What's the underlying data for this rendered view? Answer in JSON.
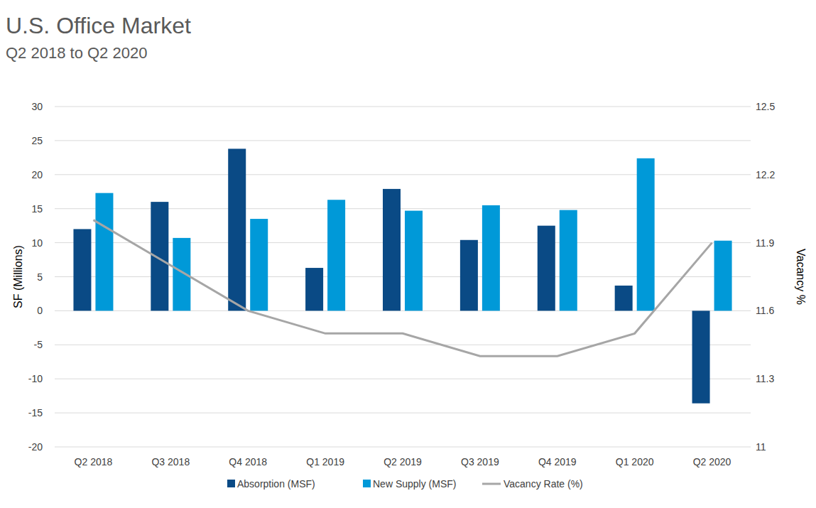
{
  "chart_data": {
    "type": "bar",
    "title": "U.S. Office Market",
    "subtitle": "Q2 2018 to Q2 2020",
    "y_label": "SF (Millions)",
    "y2_label": "Vacancy %",
    "categories": [
      "Q2 2018",
      "Q3 2018",
      "Q4 2018",
      "Q1 2019",
      "Q2 2019",
      "Q3 2019",
      "Q4 2019",
      "Q1 2020",
      "Q2 2020"
    ],
    "series": [
      {
        "name": "Absorption (MSF)",
        "type": "bar",
        "color": "#0a4a85",
        "values": [
          12.0,
          16.0,
          23.8,
          6.3,
          17.9,
          10.4,
          12.5,
          3.7,
          -13.6
        ]
      },
      {
        "name": "New Supply (MSF)",
        "type": "bar",
        "color": "#0099d8",
        "values": [
          17.3,
          10.7,
          13.5,
          16.3,
          14.7,
          15.5,
          14.8,
          22.4,
          10.3
        ]
      },
      {
        "name": "Vacancy Rate (%)",
        "type": "line",
        "axis": "y2",
        "color": "#a6a6a6",
        "values": [
          12.0,
          11.8,
          11.6,
          11.5,
          11.5,
          11.4,
          11.4,
          11.5,
          11.9
        ]
      }
    ],
    "ylim": [
      -20,
      30
    ],
    "yticks": [
      -20,
      -15,
      -10,
      -5,
      0,
      5,
      10,
      15,
      20,
      25,
      30
    ],
    "y2lim": [
      11,
      12.5
    ],
    "y2ticks": [
      11,
      11.3,
      11.6,
      11.9,
      12.2,
      12.5
    ],
    "grid": true,
    "legend": "bottom"
  }
}
